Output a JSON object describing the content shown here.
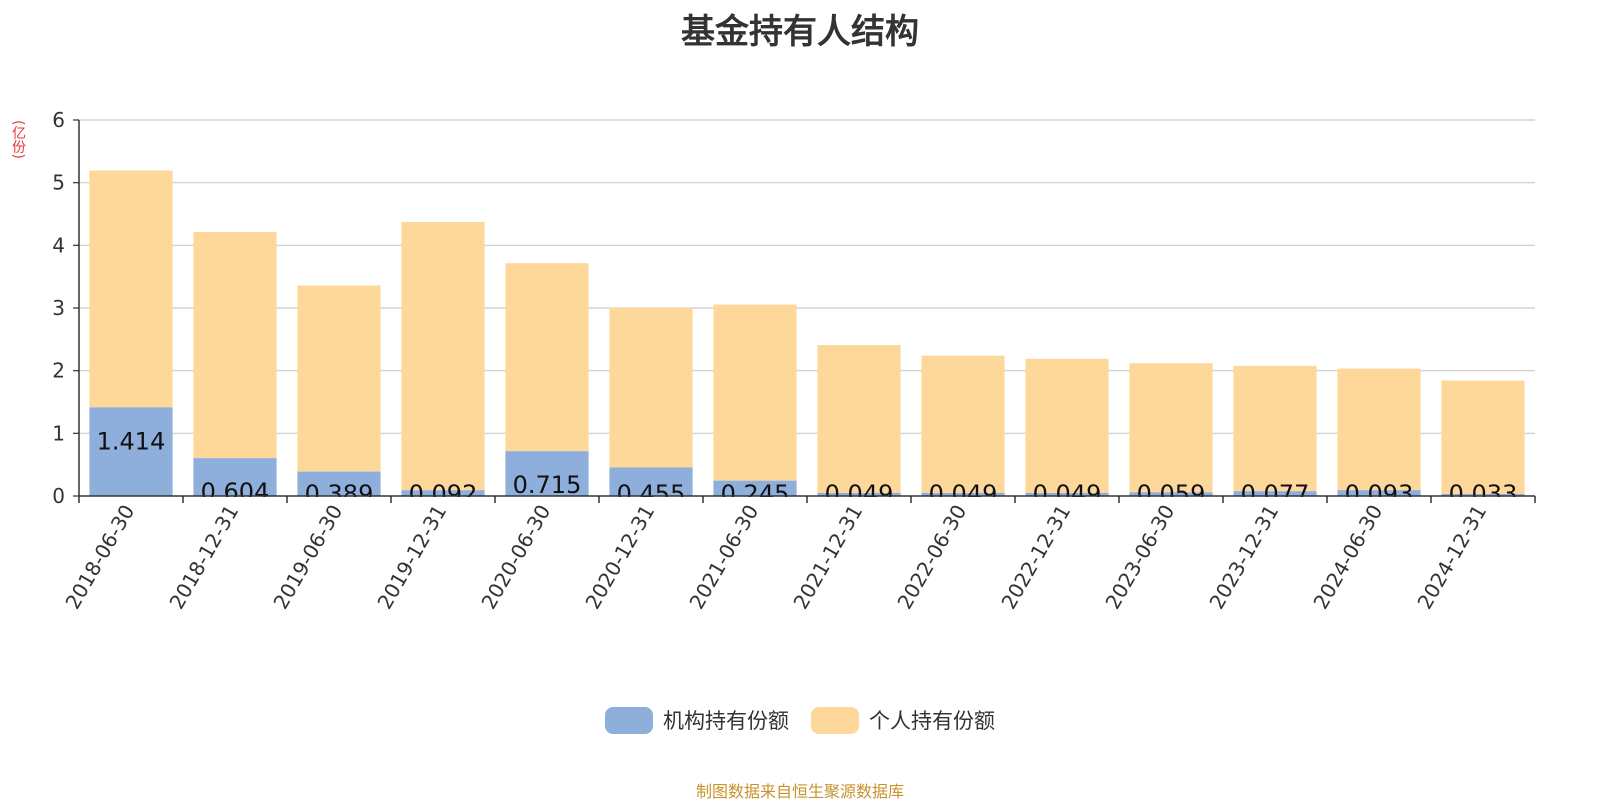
{
  "title": "基金持有人结构",
  "unit_label": "(亿份)",
  "source_text": "制图数据来自恒生聚源数据库",
  "colors": {
    "institution": "#8eaedb",
    "individual": "#fdd89a",
    "axis": "#333333",
    "grid": "#cccccc"
  },
  "chart_data": {
    "type": "bar",
    "stacked": true,
    "title": "基金持有人结构",
    "ylabel": "(亿份)",
    "xlabel": "",
    "ylim": [
      0,
      6
    ],
    "yticks": [
      0,
      1,
      2,
      3,
      4,
      5,
      6
    ],
    "grid": true,
    "legend_position": "bottom-center",
    "categories": [
      "2018-06-30",
      "2018-12-31",
      "2019-06-30",
      "2019-12-31",
      "2020-06-30",
      "2020-12-31",
      "2021-06-30",
      "2021-12-31",
      "2022-06-30",
      "2022-12-31",
      "2023-06-30",
      "2023-12-31",
      "2024-06-30",
      "2024-12-31"
    ],
    "series": [
      {
        "name": "机构持有份额",
        "values": [
          1.414,
          0.604,
          0.389,
          0.092,
          0.715,
          0.455,
          0.245,
          0.049,
          0.049,
          0.049,
          0.059,
          0.077,
          0.093,
          0.033
        ],
        "labels": [
          "1.414",
          "0.604",
          "0.389",
          "0.092",
          "0.715",
          "0.455",
          "0.245",
          "0.049",
          "0.049",
          "0.049",
          "0.059",
          "0.077",
          "0.093",
          "0.033"
        ]
      },
      {
        "name": "个人持有份额",
        "values": [
          3.78,
          3.61,
          2.97,
          4.28,
          3.0,
          2.55,
          2.81,
          2.36,
          2.19,
          2.14,
          2.06,
          2.0,
          1.94,
          1.81
        ]
      }
    ]
  }
}
